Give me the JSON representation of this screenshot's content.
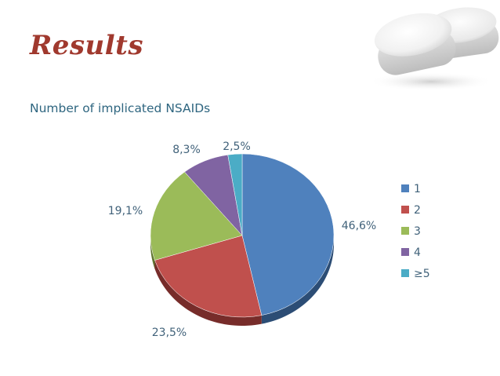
{
  "slide": {
    "title": "Results",
    "subtitle": "Number of  implicated NSAIDs"
  },
  "decor": {
    "image": "white-pills-photo"
  },
  "chart_data": {
    "type": "pie",
    "style": "3d",
    "title": "",
    "categories": [
      "1",
      "2",
      "3",
      "4",
      "≥5"
    ],
    "values": [
      46.6,
      23.5,
      19.1,
      8.3,
      2.5
    ],
    "data_labels": [
      "46,6%",
      "23,5%",
      "19,1%",
      "8,3%",
      "2,5%"
    ],
    "colors": [
      "#4f81bd",
      "#c0504d",
      "#9bbb59",
      "#8064a2",
      "#4bacc6"
    ],
    "side_colors": [
      "#2c4d75",
      "#772c2a",
      "#5f7530",
      "#4d3b62",
      "#276a7c"
    ],
    "legend_position": "right",
    "start_angle_deg": 0,
    "direction": "clockwise"
  }
}
